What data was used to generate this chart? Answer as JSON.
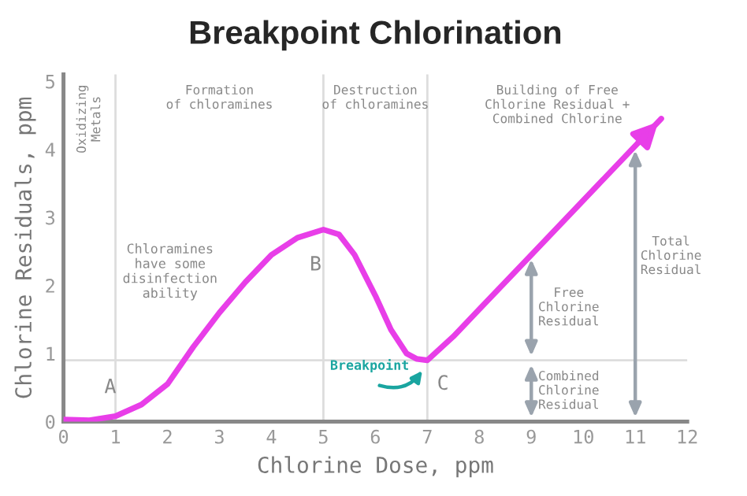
{
  "chart_data": {
    "type": "line",
    "title": "Breakpoint Chlorination",
    "xlabel": "Chlorine Dose, ppm",
    "ylabel": "Chlorine Residuals, ppm",
    "x": [
      0,
      0.5,
      1,
      1.5,
      2,
      2.5,
      3,
      3.5,
      4,
      4.5,
      5,
      5.3,
      5.6,
      6,
      6.3,
      6.6,
      6.8,
      7,
      7.5,
      8,
      9,
      10,
      11,
      11.5
    ],
    "series": [
      {
        "color": "#e83ee8",
        "values": [
          0.03,
          0.02,
          0.08,
          0.25,
          0.55,
          1.1,
          1.6,
          2.05,
          2.45,
          2.7,
          2.82,
          2.75,
          2.45,
          1.85,
          1.35,
          1.0,
          0.92,
          0.9,
          1.25,
          1.65,
          2.45,
          3.25,
          4.05,
          4.45
        ]
      }
    ],
    "xlim": [
      0,
      12
    ],
    "ylim": [
      0,
      5.1
    ],
    "xticks": [
      0,
      1,
      2,
      3,
      4,
      5,
      6,
      7,
      8,
      9,
      10,
      11,
      12
    ],
    "yticks": [
      0,
      1,
      2,
      3,
      4,
      5
    ],
    "marker": "none",
    "line_style": "solid",
    "grid": false,
    "ref_lines": [
      {
        "axis": "x",
        "value": 1,
        "color": "#dddddd"
      },
      {
        "axis": "x",
        "value": 5,
        "color": "#dddddd"
      },
      {
        "axis": "x",
        "value": 7,
        "color": "#dddddd"
      },
      {
        "axis": "y",
        "value": 0.9,
        "color": "#dddddd"
      }
    ],
    "annotations": [
      "Chloramines\nhave some\ndisinfection\nability",
      "A",
      "B",
      "C",
      "Breakpoint",
      "Free\nChlorine\nResidual",
      "Combined\nChlorine\nResidual",
      "Total\nChlorine\nResidual",
      "Oxidizing\nMetals",
      "Formation\nof chloramines",
      "Destruction\nof chloramines",
      "Building of Free\nChlorine Residual +\nCombined Chlorine"
    ]
  }
}
